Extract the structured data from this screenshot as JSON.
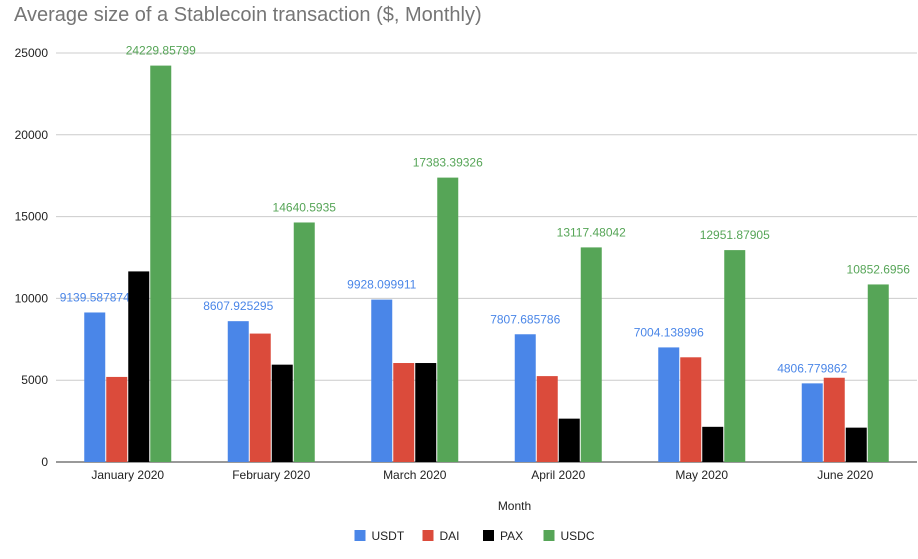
{
  "chart_data": {
    "type": "bar",
    "title": "Average size of a Stablecoin transaction ($, Monthly)",
    "xlabel": "Month",
    "ylabel": "",
    "ylim": [
      0,
      25000
    ],
    "yticks": [
      0,
      5000,
      10000,
      15000,
      20000,
      25000
    ],
    "grid": true,
    "legend_position": "bottom",
    "categories": [
      "January 2020",
      "February 2020",
      "March 2020",
      "April 2020",
      "May 2020",
      "June 2020"
    ],
    "series": [
      {
        "name": "USDT",
        "color": "#4a86e8",
        "values": [
          9139.587874,
          8607.925295,
          9928.099911,
          7807.685786,
          7004.138996,
          4806.779862
        ],
        "labels": [
          "9139.587874",
          "8607.925295",
          "9928.099911",
          "7807.685786",
          "7004.138996",
          "4806.779862"
        ]
      },
      {
        "name": "DAI",
        "color": "#db4b3b",
        "values": [
          5200,
          7850,
          6050,
          5250,
          6400,
          5150
        ],
        "labels": []
      },
      {
        "name": "PAX",
        "color": "#000000",
        "values": [
          11650,
          5950,
          6050,
          2650,
          2150,
          2100
        ],
        "labels": []
      },
      {
        "name": "USDC",
        "color": "#56a557",
        "values": [
          24229.85799,
          14640.5935,
          17383.39326,
          13117.48042,
          12951.87905,
          10852.6956
        ],
        "labels": [
          "24229.85799",
          "14640.5935",
          "17383.39326",
          "13117.48042",
          "12951.87905",
          "10852.6956"
        ]
      }
    ]
  }
}
